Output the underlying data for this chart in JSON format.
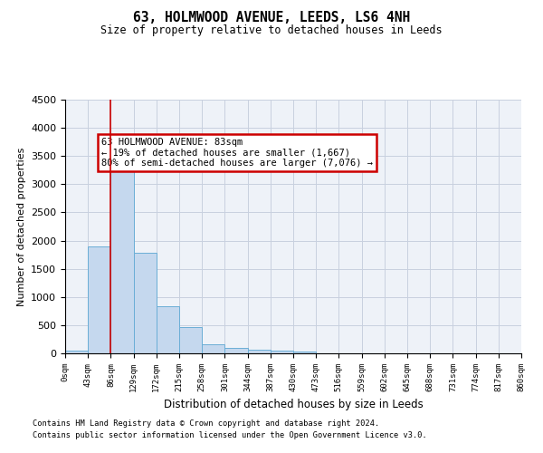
{
  "title": "63, HOLMWOOD AVENUE, LEEDS, LS6 4NH",
  "subtitle": "Size of property relative to detached houses in Leeds",
  "xlabel": "Distribution of detached houses by size in Leeds",
  "ylabel": "Number of detached properties",
  "bar_values": [
    50,
    1900,
    3500,
    1780,
    840,
    460,
    160,
    100,
    70,
    55,
    40,
    0,
    0,
    0,
    0,
    0,
    0,
    0,
    0,
    0
  ],
  "x_labels": [
    "0sqm",
    "43sqm",
    "86sqm",
    "129sqm",
    "172sqm",
    "215sqm",
    "258sqm",
    "301sqm",
    "344sqm",
    "387sqm",
    "430sqm",
    "473sqm",
    "516sqm",
    "559sqm",
    "602sqm",
    "645sqm",
    "688sqm",
    "731sqm",
    "774sqm",
    "817sqm",
    "860sqm"
  ],
  "bar_color": "#c5d8ee",
  "bar_edge_color": "#6baed6",
  "ylim": [
    0,
    4500
  ],
  "yticks": [
    0,
    500,
    1000,
    1500,
    2000,
    2500,
    3000,
    3500,
    4000,
    4500
  ],
  "annotation_text": "63 HOLMWOOD AVENUE: 83sqm\n← 19% of detached houses are smaller (1,667)\n80% of semi-detached houses are larger (7,076) →",
  "annotation_box_color": "#ffffff",
  "annotation_box_edgecolor": "#cc0000",
  "footnote1": "Contains HM Land Registry data © Crown copyright and database right 2024.",
  "footnote2": "Contains public sector information licensed under the Open Government Licence v3.0.",
  "background_color": "#eef2f8",
  "grid_color": "#c8d0df"
}
